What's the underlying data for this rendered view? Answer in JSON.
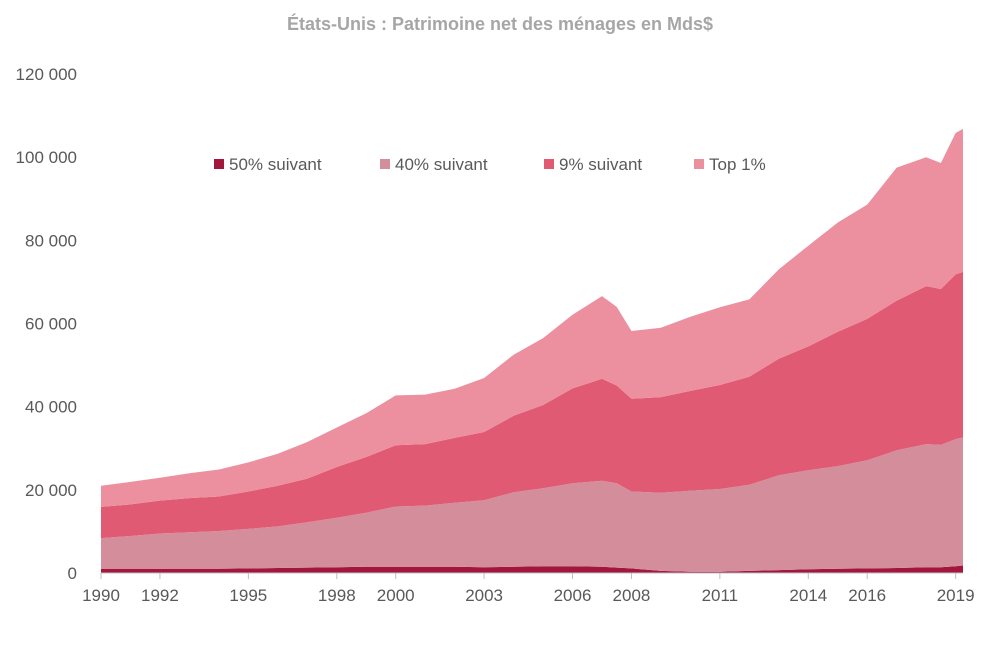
{
  "chart_data": {
    "type": "area",
    "stacked": true,
    "title": "États-Unis : Patrimoine net des ménages en Mds$",
    "xlabel": "",
    "ylabel": "",
    "xlim": [
      1990,
      2019.25
    ],
    "ylim": [
      0,
      120000
    ],
    "x_ticks": [
      1990,
      1992,
      1995,
      1998,
      2000,
      2003,
      2006,
      2008,
      2011,
      2014,
      2016,
      2019
    ],
    "y_ticks": [
      0,
      20000,
      40000,
      60000,
      80000,
      100000,
      120000
    ],
    "y_tick_labels": [
      "0",
      "20 000",
      "40 000",
      "60 000",
      "80 000",
      "100 000",
      "120 000"
    ],
    "legend_position": "top-center",
    "grid": false,
    "x": [
      1990,
      1991,
      1992,
      1993,
      1994,
      1995,
      1996,
      1997,
      1998,
      1999,
      2000,
      2001,
      2002,
      2003,
      2004,
      2005,
      2006,
      2007,
      2007.5,
      2008,
      2009,
      2010,
      2011,
      2012,
      2013,
      2014,
      2015,
      2016,
      2017,
      2018,
      2018.5,
      2019,
      2019.25
    ],
    "series": [
      {
        "name": "50% suivant",
        "color": "#a3173c",
        "values": [
          1000,
          1000,
          1000,
          1000,
          1000,
          1100,
          1200,
          1300,
          1400,
          1500,
          1500,
          1500,
          1500,
          1400,
          1500,
          1600,
          1600,
          1500,
          1300,
          1100,
          500,
          300,
          300,
          500,
          700,
          900,
          1000,
          1100,
          1200,
          1400,
          1400,
          1600,
          1800
        ]
      },
      {
        "name": "40% suivant",
        "color": "#d48e9b",
        "values": [
          7400,
          7900,
          8500,
          8800,
          9100,
          9500,
          10000,
          10900,
          11900,
          13000,
          14500,
          14700,
          15400,
          16100,
          17900,
          18800,
          20000,
          20700,
          20300,
          18500,
          18800,
          19500,
          19900,
          20700,
          22800,
          23800,
          24700,
          26000,
          28300,
          29600,
          29400,
          30600,
          30800
        ]
      },
      {
        "name": "9% suivant",
        "color": "#e05a73",
        "values": [
          7500,
          7600,
          7900,
          8200,
          8300,
          9000,
          9800,
          10500,
          12200,
          13400,
          14700,
          14800,
          15600,
          16400,
          18400,
          20000,
          22800,
          24500,
          23500,
          22300,
          23000,
          24000,
          25000,
          26000,
          28000,
          29800,
          32300,
          34000,
          36000,
          38000,
          37500,
          39600,
          39800
        ]
      },
      {
        "name": "Top 1%",
        "color": "#ec909f",
        "values": [
          5100,
          5400,
          5500,
          6000,
          6500,
          7000,
          7700,
          8800,
          9500,
          10500,
          12000,
          11900,
          11800,
          13000,
          14700,
          16100,
          17700,
          19900,
          18900,
          16300,
          16700,
          17800,
          18700,
          18600,
          21500,
          24200,
          26300,
          27500,
          32000,
          31000,
          30300,
          34000,
          34400
        ]
      }
    ]
  }
}
